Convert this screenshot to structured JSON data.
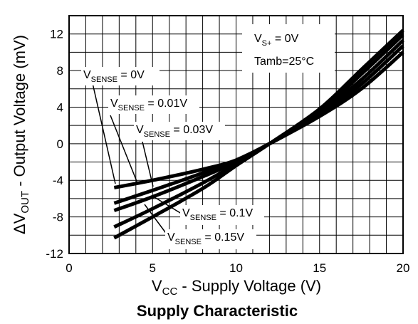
{
  "chart_data": {
    "type": "line",
    "title": "Supply Characteristic",
    "xlabel": {
      "pre": "V",
      "sub": "CC",
      "post": " - Supply Voltage (V)"
    },
    "ylabel": {
      "pre": "ΔV",
      "sub": "OUT",
      "post": " - Output Voltage (mV)"
    },
    "xlim": [
      0,
      20
    ],
    "ylim": [
      -12,
      14
    ],
    "xticks": [
      0,
      5,
      10,
      15,
      20
    ],
    "xtick_labels": [
      "0",
      "5",
      "10",
      "15",
      "20"
    ],
    "yticks": [
      12,
      8,
      4,
      0,
      -4,
      -8,
      -12
    ],
    "ytick_labels": [
      "12",
      "8",
      "4",
      "0",
      "-4",
      "-8",
      "-12"
    ],
    "grid": true,
    "line_color": "#000000",
    "conditions": [
      {
        "pre": "V",
        "sub": "S+",
        "post": " = 0V"
      },
      {
        "pre": "Tamb=25°C",
        "sub": "",
        "post": ""
      }
    ],
    "series": [
      {
        "name": {
          "pre": "V",
          "sub": "SENSE",
          "post": " = 0V"
        },
        "x": [
          2.7,
          5,
          8,
          10,
          12,
          15,
          17.5,
          20
        ],
        "y": [
          -4.8,
          -4.0,
          -2.8,
          -1.8,
          0,
          3.0,
          6.0,
          10.0
        ]
      },
      {
        "name": {
          "pre": "V",
          "sub": "SENSE",
          "post": " = 0.01V"
        },
        "x": [
          2.7,
          5,
          8,
          10,
          12,
          15,
          17.5,
          20
        ],
        "y": [
          -6.5,
          -5.1,
          -3.2,
          -1.8,
          0,
          3.1,
          6.5,
          10.7
        ]
      },
      {
        "name": {
          "pre": "V",
          "sub": "SENSE",
          "post": " = 0.03V"
        },
        "x": [
          2.7,
          5,
          8,
          10,
          12,
          15,
          17.5,
          20
        ],
        "y": [
          -7.3,
          -5.8,
          -3.6,
          -2.0,
          0,
          3.3,
          7.0,
          11.3
        ]
      },
      {
        "name": {
          "pre": "V",
          "sub": "SENSE",
          "post": " = 0.1V"
        },
        "x": [
          2.7,
          5,
          8,
          10,
          12,
          15,
          17.5,
          20
        ],
        "y": [
          -9.1,
          -7.1,
          -4.3,
          -2.2,
          0,
          3.5,
          7.6,
          11.9
        ]
      },
      {
        "name": {
          "pre": "V",
          "sub": "SENSE",
          "post": " = 0.15V"
        },
        "x": [
          2.7,
          5,
          8,
          10,
          12,
          15,
          17.5,
          20
        ],
        "y": [
          -10.3,
          -8.0,
          -4.9,
          -2.4,
          0,
          3.8,
          8.1,
          12.4
        ]
      }
    ]
  }
}
